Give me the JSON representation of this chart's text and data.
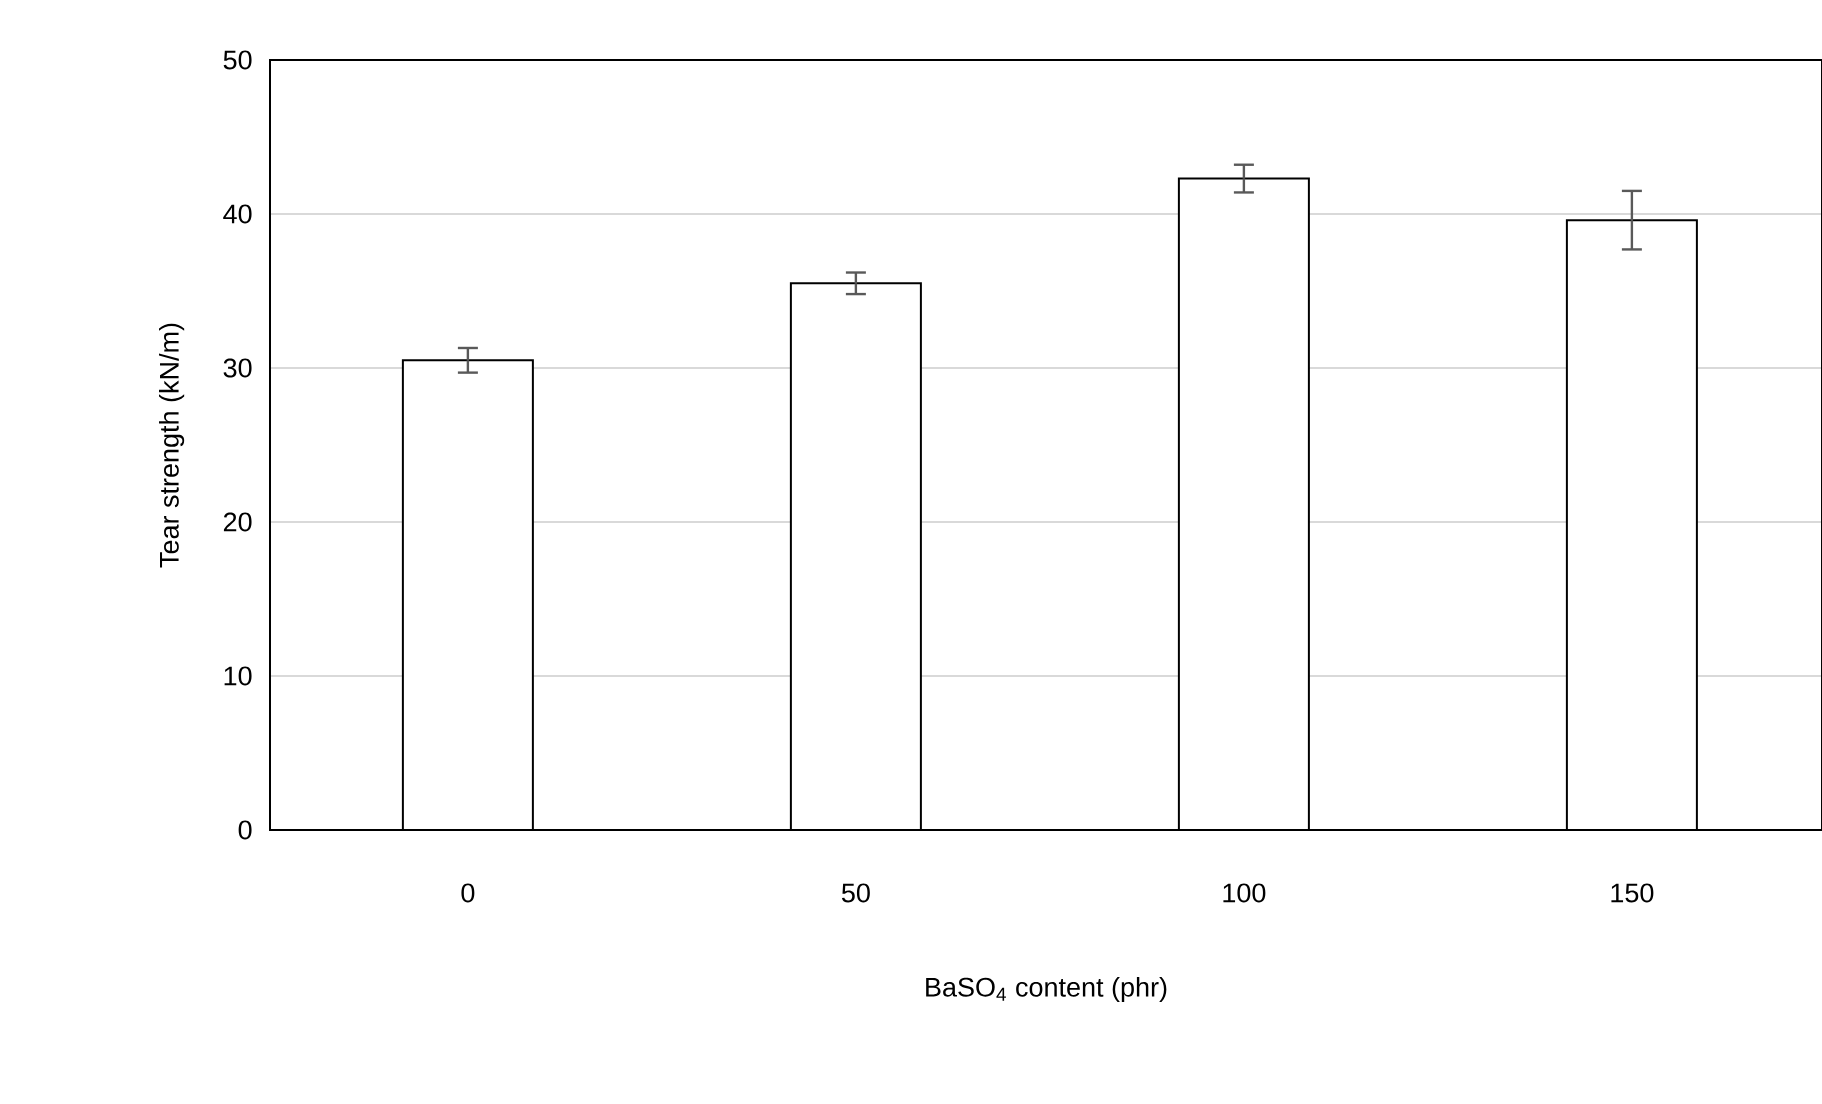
{
  "chart_data": {
    "type": "bar",
    "xlabel": "BaSO$_{4}$ content (phr)",
    "ylabel": "Tear strength (kN/m)",
    "categories": [
      "0",
      "50",
      "100",
      "150"
    ],
    "values": [
      30.5,
      35.5,
      42.3,
      39.6
    ],
    "errors": [
      0.8,
      0.7,
      0.9,
      1.9
    ],
    "color": "#ffffff",
    "ylim": [
      0,
      50
    ],
    "yticks": [
      0,
      10,
      20,
      30,
      40,
      50
    ],
    "grid": "y"
  }
}
